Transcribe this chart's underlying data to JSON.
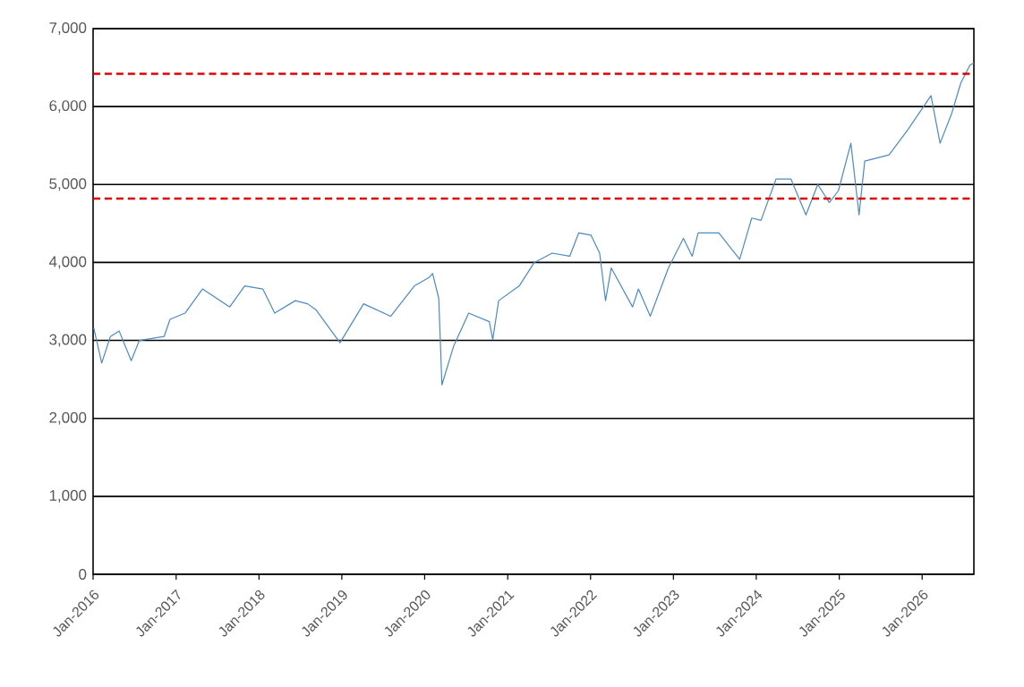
{
  "chart_data": {
    "type": "line",
    "grid": "y",
    "marker": "none",
    "line_style": "solid",
    "xlim": [
      "2016-01-01",
      "2026-08-17"
    ],
    "xticks": [
      {
        "value": "2016-01-01",
        "label": "Jan-2016"
      },
      {
        "value": "2017-01-01",
        "label": "Jan-2017"
      },
      {
        "value": "2018-01-01",
        "label": "Jan-2018"
      },
      {
        "value": "2019-01-01",
        "label": "Jan-2019"
      },
      {
        "value": "2020-01-01",
        "label": "Jan-2020"
      },
      {
        "value": "2021-01-01",
        "label": "Jan-2021"
      },
      {
        "value": "2022-01-01",
        "label": "Jan-2022"
      },
      {
        "value": "2023-01-01",
        "label": "Jan-2023"
      },
      {
        "value": "2024-01-01",
        "label": "Jan-2024"
      },
      {
        "value": "2025-01-01",
        "label": "Jan-2025"
      },
      {
        "value": "2026-01-01",
        "label": "Jan-2026"
      }
    ],
    "ylim": [
      0,
      7000
    ],
    "yticks": [
      0,
      {
        "value": 1000,
        "label": "1,000"
      },
      {
        "value": 2000,
        "label": "2,000"
      },
      {
        "value": 3000,
        "label": "3,000"
      },
      {
        "value": 4000,
        "label": "4,000"
      },
      {
        "value": 5000,
        "label": "5,000"
      },
      {
        "value": 6000,
        "label": "6,000"
      },
      {
        "value": 7000,
        "label": "7,000"
      }
    ],
    "ref_lines": [
      {
        "axis": "y",
        "value": 6420,
        "color": "#e00000",
        "line_style": "dashed"
      },
      {
        "axis": "y",
        "value": 4820,
        "color": "#e00000",
        "line_style": "dashed"
      }
    ],
    "series": [
      {
        "color": "#4a8ac4",
        "x": [
          "2016-01-04",
          "2016-02-08",
          "2016-03-17",
          "2016-04-25",
          "2016-06-17",
          "2016-07-23",
          "2016-11-09",
          "2016-12-05",
          "2017-02-09",
          "2017-04-27",
          "2017-08-25",
          "2017-10-30",
          "2018-01-18",
          "2018-03-11",
          "2018-06-10",
          "2018-08-03",
          "2018-09-10",
          "2018-12-24",
          "2019-04-07",
          "2019-08-04",
          "2019-11-17",
          "2020-01-22",
          "2020-02-05",
          "2020-03-03",
          "2020-03-17",
          "2020-05-08",
          "2020-07-13",
          "2020-10-12",
          "2020-10-27",
          "2020-11-22",
          "2021-02-21",
          "2021-04-28",
          "2021-07-16",
          "2021-10-01",
          "2021-11-10",
          "2022-01-03",
          "2022-02-10",
          "2022-03-08",
          "2022-04-02",
          "2022-07-05",
          "2022-07-31",
          "2022-09-21",
          "2022-12-10",
          "2023-02-14",
          "2023-03-25",
          "2023-04-20",
          "2023-07-20",
          "2023-10-20",
          "2023-12-12",
          "2024-01-22",
          "2024-03-28",
          "2024-06-02",
          "2024-08-07",
          "2024-09-28",
          "2024-11-18",
          "2024-12-28",
          "2025-02-21",
          "2025-03-29",
          "2025-04-23",
          "2025-08-08",
          "2025-10-27",
          "2026-02-09",
          "2026-03-21",
          "2026-05-11",
          "2026-06-20",
          "2026-07-30",
          "2026-08-17"
        ],
        "values": [
          3160,
          2710,
          3050,
          3120,
          2740,
          3000,
          3050,
          3270,
          3350,
          3660,
          3430,
          3700,
          3660,
          3350,
          3510,
          3470,
          3390,
          2970,
          3470,
          3310,
          3700,
          3810,
          3860,
          3540,
          2430,
          2930,
          3350,
          3240,
          3010,
          3510,
          3700,
          4000,
          4120,
          4080,
          4380,
          4350,
          4120,
          3510,
          3930,
          3430,
          3660,
          3310,
          3930,
          4310,
          4080,
          4380,
          4380,
          4040,
          4570,
          4540,
          5070,
          5070,
          4610,
          5000,
          4770,
          4920,
          5530,
          4610,
          5300,
          5380,
          5690,
          6140,
          5530,
          5910,
          6300,
          6530,
          6560
        ]
      }
    ]
  }
}
